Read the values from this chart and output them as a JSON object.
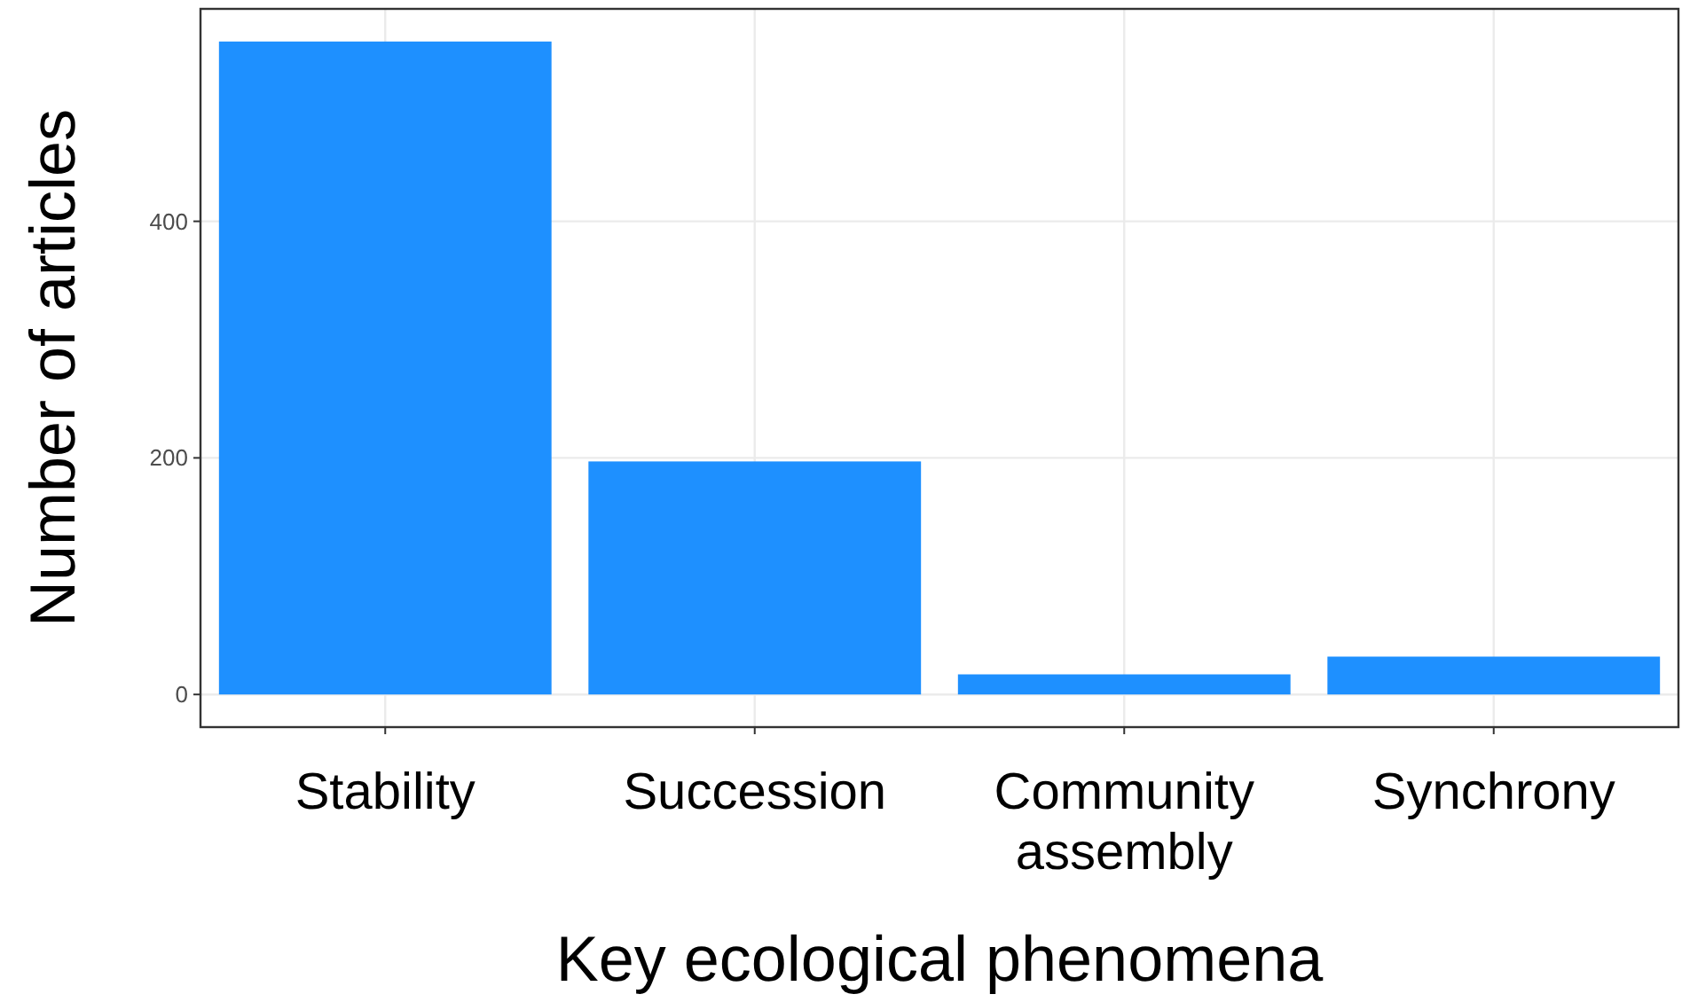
{
  "chart_data": {
    "type": "bar",
    "xlabel": "Key ecological phenomena",
    "ylabel": "Number of articles",
    "categories": [
      "Stability",
      "Succession",
      "Community assembly",
      "Synchrony"
    ],
    "values": [
      552,
      197,
      17,
      32
    ],
    "color": "#1e90ff",
    "ylim": [
      -27.6,
      579.6
    ],
    "yticks": [
      0,
      200,
      400
    ],
    "grid": true
  }
}
